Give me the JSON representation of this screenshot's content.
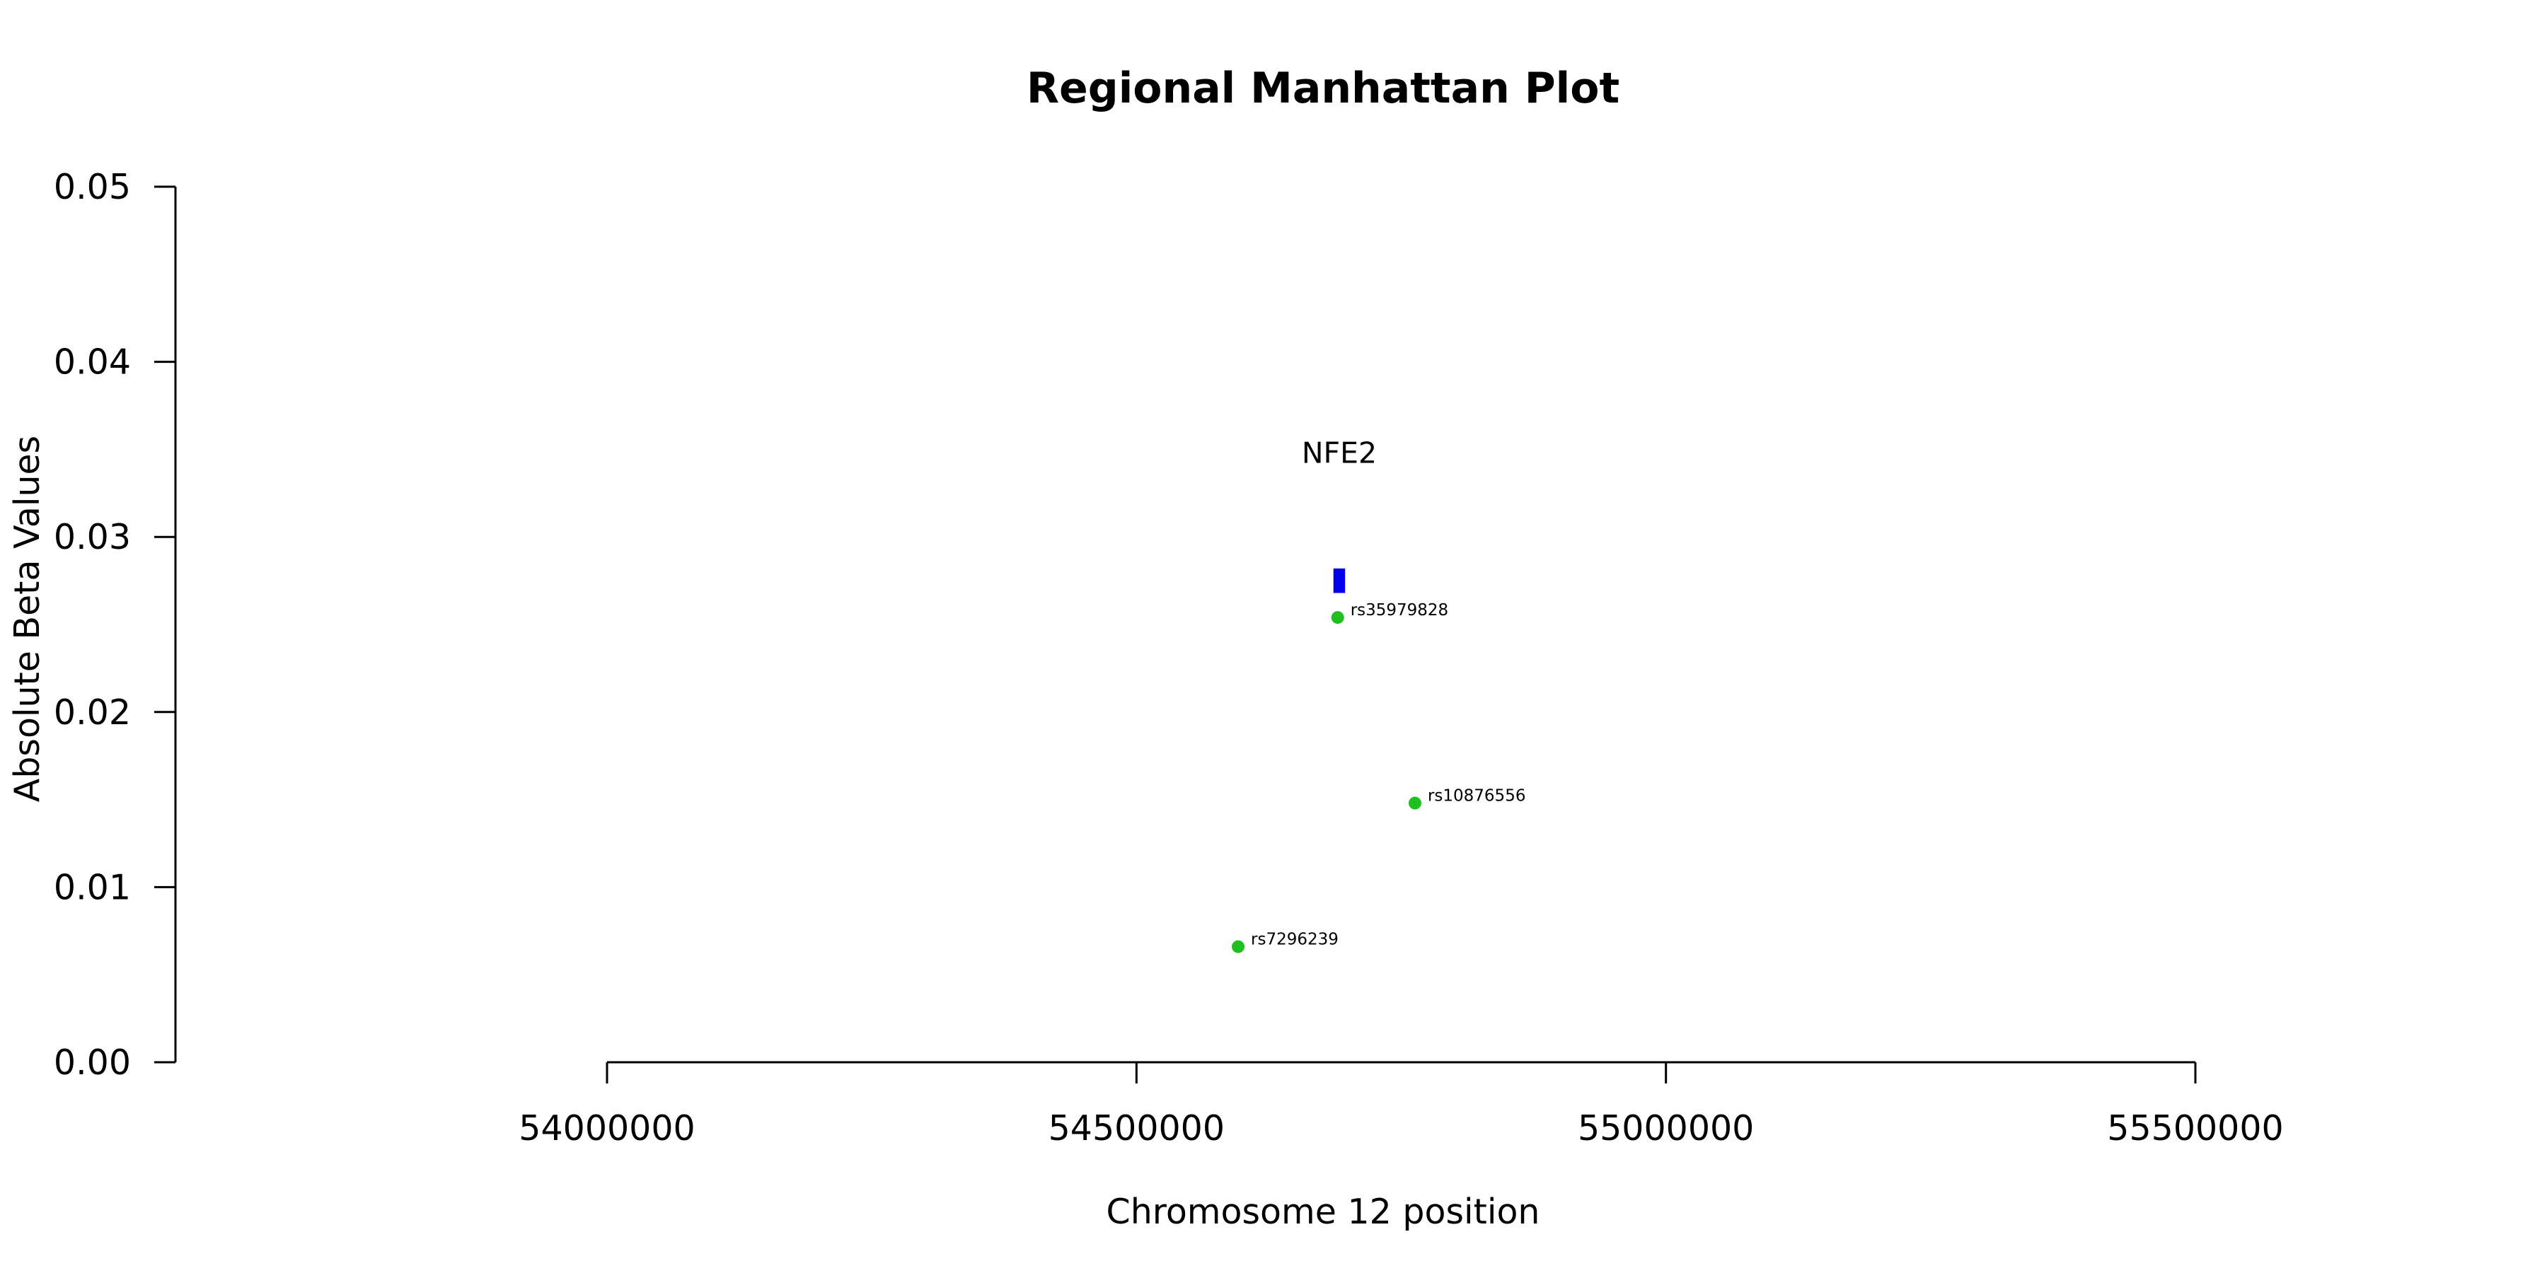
{
  "chart_data": {
    "type": "scatter",
    "title": "Regional Manhattan Plot",
    "xlabel": "Chromosome 12 position",
    "ylabel": "Absolute Beta Values",
    "xlim": [
      54000000,
      55500000
    ],
    "ylim": [
      0,
      0.05
    ],
    "x_ticks": [
      54000000,
      54500000,
      55000000,
      55500000
    ],
    "x_tick_labels": [
      "54000000",
      "54500000",
      "55000000",
      "55500000"
    ],
    "y_ticks": [
      0,
      0.01,
      0.02,
      0.03,
      0.04,
      0.05
    ],
    "y_tick_labels": [
      "0.00",
      "0.01",
      "0.02",
      "0.03",
      "0.04",
      "0.05"
    ],
    "grid": false,
    "point_color": "#1fbf1f",
    "gene_color": "#0000ee",
    "points": [
      {
        "label": "rs35979828",
        "x": 54690000,
        "y": 0.0254
      },
      {
        "label": "rs10876556",
        "x": 54763000,
        "y": 0.0148
      },
      {
        "label": "rs7296239",
        "x": 54596000,
        "y": 0.0066
      }
    ],
    "genes": [
      {
        "name": "NFE2",
        "start": 54686000,
        "end": 54697000,
        "y_bottom": 0.0268,
        "y_top": 0.0282,
        "label_y": 0.0348
      }
    ]
  }
}
